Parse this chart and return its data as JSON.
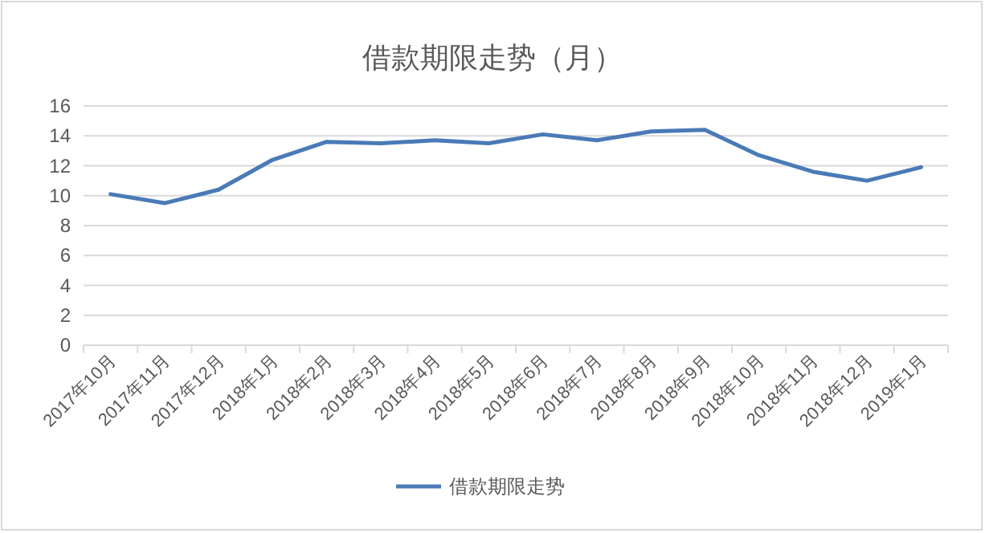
{
  "chart_data": {
    "type": "line",
    "title": "借款期限走势（月）",
    "categories": [
      "2017年10月",
      "2017年11月",
      "2017年12月",
      "2018年1月",
      "2018年2月",
      "2018年3月",
      "2018年4月",
      "2018年5月",
      "2018年6月",
      "2018年7月",
      "2018年8月",
      "2018年9月",
      "2018年10月",
      "2018年11月",
      "2018年12月",
      "2019年1月"
    ],
    "series": [
      {
        "name": "借款期限走势",
        "color": "#4a7ab7",
        "values": [
          10.1,
          9.5,
          10.4,
          12.4,
          13.6,
          13.5,
          13.7,
          13.5,
          14.1,
          13.7,
          14.3,
          14.4,
          12.7,
          11.6,
          11.0,
          11.9
        ]
      }
    ],
    "ylim": [
      0,
      16
    ],
    "yticks": [
      0,
      2,
      4,
      6,
      8,
      10,
      12,
      14,
      16
    ],
    "grid": "y",
    "legend": "bottom",
    "marker": "none",
    "line_style": "solid"
  }
}
